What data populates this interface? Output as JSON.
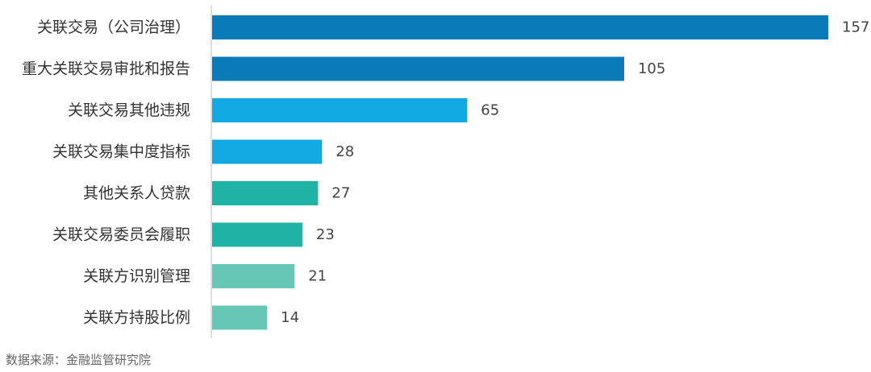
{
  "chart_data": {
    "type": "bar",
    "orientation": "horizontal",
    "categories": [
      "关联交易（公司治理）",
      "重大关联交易审批和报告",
      "关联交易其他违规",
      "关联交易集中度指标",
      "其他关系人贷款",
      "关联交易委员会履职",
      "关联方识别管理",
      "关联方持股比例"
    ],
    "values": [
      157,
      105,
      65,
      28,
      27,
      23,
      21,
      14
    ],
    "colors": [
      "#0a7ab8",
      "#0a7ab8",
      "#12a9e3",
      "#12a9e3",
      "#1fb3a6",
      "#1fb3a6",
      "#66c7b5",
      "#66c7b5"
    ],
    "xlim": [
      0,
      157
    ],
    "title": "",
    "xlabel": "",
    "ylabel": "",
    "grid": false
  },
  "source_note": "数据来源：金融监管研究院"
}
